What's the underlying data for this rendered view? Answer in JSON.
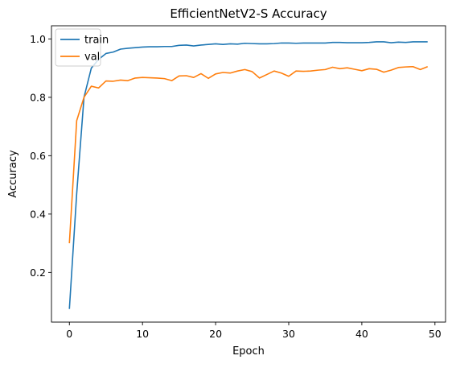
{
  "chart_data": {
    "type": "line",
    "title": "EfficientNetV2-S Accuracy",
    "xlabel": "Epoch",
    "ylabel": "Accuracy",
    "xlim": [
      -2.45,
      51.45
    ],
    "ylim": [
      0.03,
      1.045
    ],
    "xticks": [
      0,
      10,
      20,
      30,
      40,
      50
    ],
    "yticks": [
      0.2,
      0.4,
      0.6,
      0.8,
      1.0
    ],
    "ytick_labels": [
      "0.2",
      "0.4",
      "0.6",
      "0.8",
      "1.0"
    ],
    "grid": false,
    "legend_position": "upper-left",
    "x": [
      0,
      1,
      2,
      3,
      4,
      5,
      6,
      7,
      8,
      9,
      10,
      11,
      12,
      13,
      14,
      15,
      16,
      17,
      18,
      19,
      20,
      21,
      22,
      23,
      24,
      25,
      26,
      27,
      28,
      29,
      30,
      31,
      32,
      33,
      34,
      35,
      36,
      37,
      38,
      39,
      40,
      41,
      42,
      43,
      44,
      45,
      46,
      47,
      48,
      49
    ],
    "series": [
      {
        "name": "train",
        "color": "#1f77b4",
        "values": [
          0.075,
          0.47,
          0.8,
          0.9,
          0.93,
          0.95,
          0.955,
          0.965,
          0.968,
          0.97,
          0.972,
          0.973,
          0.973,
          0.974,
          0.974,
          0.978,
          0.979,
          0.976,
          0.979,
          0.981,
          0.983,
          0.981,
          0.983,
          0.982,
          0.985,
          0.984,
          0.983,
          0.983,
          0.984,
          0.986,
          0.986,
          0.985,
          0.986,
          0.986,
          0.986,
          0.986,
          0.988,
          0.988,
          0.987,
          0.987,
          0.987,
          0.988,
          0.99,
          0.99,
          0.987,
          0.989,
          0.988,
          0.99,
          0.99,
          0.99
        ]
      },
      {
        "name": "val",
        "color": "#ff7f0e",
        "values": [
          0.3,
          0.72,
          0.8,
          0.838,
          0.832,
          0.856,
          0.855,
          0.859,
          0.857,
          0.866,
          0.868,
          0.867,
          0.866,
          0.864,
          0.857,
          0.873,
          0.874,
          0.868,
          0.881,
          0.865,
          0.88,
          0.885,
          0.883,
          0.89,
          0.895,
          0.888,
          0.866,
          0.878,
          0.89,
          0.883,
          0.872,
          0.89,
          0.889,
          0.89,
          0.893,
          0.895,
          0.903,
          0.898,
          0.901,
          0.896,
          0.891,
          0.898,
          0.896,
          0.886,
          0.893,
          0.902,
          0.904,
          0.905,
          0.895,
          0.905
        ]
      }
    ]
  }
}
